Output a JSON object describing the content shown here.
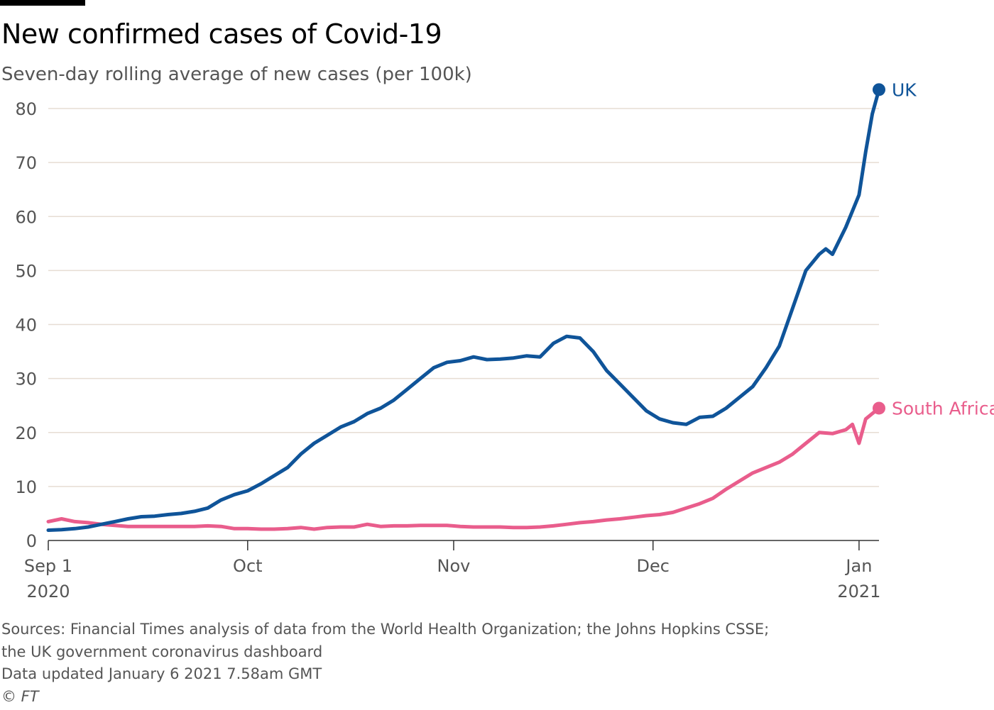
{
  "header": {
    "title": "New confirmed cases of Covid-19",
    "subtitle": "Seven-day rolling average of new cases (per 100k)"
  },
  "footer": {
    "sources_line1": "Sources: Financial Times analysis of data from the World Health Organization; the Johns Hopkins CSSE;",
    "sources_line2": "the UK government coronavirus dashboard",
    "updated": "Data updated January 6 2021 7.58am GMT",
    "copyright": "© FT"
  },
  "colors": {
    "uk": "#0f5499",
    "south_africa": "#e95d8c",
    "grid": "#e6ddd3",
    "axis": "#333333",
    "tick_text": "#555555"
  },
  "chart_data": {
    "type": "line",
    "title": "New confirmed cases of Covid-19",
    "subtitle": "Seven-day rolling average of new cases (per 100k)",
    "xlabel": "",
    "ylabel": "",
    "ylim": [
      0,
      80
    ],
    "yticks": [
      0,
      10,
      20,
      30,
      40,
      50,
      60,
      70,
      80
    ],
    "xlim": [
      "2020-09-01",
      "2021-01-04"
    ],
    "xticks": [
      {
        "date": "2020-09-01",
        "label": "Sep 1",
        "sublabel": "2020"
      },
      {
        "date": "2020-10-01",
        "label": "Oct",
        "sublabel": ""
      },
      {
        "date": "2020-11-01",
        "label": "Nov",
        "sublabel": ""
      },
      {
        "date": "2020-12-01",
        "label": "Dec",
        "sublabel": ""
      },
      {
        "date": "2021-01-01",
        "label": "Jan",
        "sublabel": "2021"
      }
    ],
    "grid": true,
    "legend": "end-of-line labels",
    "series": [
      {
        "name": "UK",
        "color": "#0f5499",
        "points": [
          [
            "2020-09-01",
            1.9
          ],
          [
            "2020-09-03",
            2.0
          ],
          [
            "2020-09-05",
            2.2
          ],
          [
            "2020-09-07",
            2.5
          ],
          [
            "2020-09-09",
            3.0
          ],
          [
            "2020-09-11",
            3.5
          ],
          [
            "2020-09-13",
            4.0
          ],
          [
            "2020-09-15",
            4.4
          ],
          [
            "2020-09-17",
            4.5
          ],
          [
            "2020-09-19",
            4.8
          ],
          [
            "2020-09-21",
            5.0
          ],
          [
            "2020-09-23",
            5.4
          ],
          [
            "2020-09-25",
            6.0
          ],
          [
            "2020-09-27",
            7.5
          ],
          [
            "2020-09-29",
            8.5
          ],
          [
            "2020-10-01",
            9.2
          ],
          [
            "2020-10-03",
            10.5
          ],
          [
            "2020-10-05",
            12.0
          ],
          [
            "2020-10-07",
            13.5
          ],
          [
            "2020-10-09",
            16.0
          ],
          [
            "2020-10-11",
            18.0
          ],
          [
            "2020-10-13",
            19.5
          ],
          [
            "2020-10-15",
            21.0
          ],
          [
            "2020-10-17",
            22.0
          ],
          [
            "2020-10-19",
            23.5
          ],
          [
            "2020-10-21",
            24.5
          ],
          [
            "2020-10-23",
            26.0
          ],
          [
            "2020-10-25",
            28.0
          ],
          [
            "2020-10-27",
            30.0
          ],
          [
            "2020-10-29",
            32.0
          ],
          [
            "2020-10-31",
            33.0
          ],
          [
            "2020-11-02",
            33.3
          ],
          [
            "2020-11-04",
            34.0
          ],
          [
            "2020-11-06",
            33.5
          ],
          [
            "2020-11-08",
            33.6
          ],
          [
            "2020-11-10",
            33.8
          ],
          [
            "2020-11-12",
            34.2
          ],
          [
            "2020-11-14",
            34.0
          ],
          [
            "2020-11-16",
            36.5
          ],
          [
            "2020-11-18",
            37.8
          ],
          [
            "2020-11-20",
            37.5
          ],
          [
            "2020-11-22",
            35.0
          ],
          [
            "2020-11-24",
            31.5
          ],
          [
            "2020-11-26",
            29.0
          ],
          [
            "2020-11-28",
            26.5
          ],
          [
            "2020-11-30",
            24.0
          ],
          [
            "2020-12-02",
            22.5
          ],
          [
            "2020-12-04",
            21.8
          ],
          [
            "2020-12-06",
            21.5
          ],
          [
            "2020-12-08",
            22.8
          ],
          [
            "2020-12-10",
            23.0
          ],
          [
            "2020-12-12",
            24.5
          ],
          [
            "2020-12-14",
            26.5
          ],
          [
            "2020-12-16",
            28.5
          ],
          [
            "2020-12-18",
            32.0
          ],
          [
            "2020-12-20",
            36.0
          ],
          [
            "2020-12-22",
            43.0
          ],
          [
            "2020-12-24",
            50.0
          ],
          [
            "2020-12-26",
            53.0
          ],
          [
            "2020-12-27",
            54.0
          ],
          [
            "2020-12-28",
            53.0
          ],
          [
            "2020-12-30",
            58.0
          ],
          [
            "2021-01-01",
            64.0
          ],
          [
            "2021-01-02",
            72.0
          ],
          [
            "2021-01-03",
            79.0
          ],
          [
            "2021-01-04",
            83.5
          ]
        ]
      },
      {
        "name": "South Africa",
        "color": "#e95d8c",
        "points": [
          [
            "2020-09-01",
            3.5
          ],
          [
            "2020-09-03",
            4.0
          ],
          [
            "2020-09-05",
            3.5
          ],
          [
            "2020-09-07",
            3.3
          ],
          [
            "2020-09-09",
            3.0
          ],
          [
            "2020-09-11",
            2.8
          ],
          [
            "2020-09-13",
            2.6
          ],
          [
            "2020-09-15",
            2.6
          ],
          [
            "2020-09-17",
            2.6
          ],
          [
            "2020-09-19",
            2.6
          ],
          [
            "2020-09-21",
            2.6
          ],
          [
            "2020-09-23",
            2.6
          ],
          [
            "2020-09-25",
            2.7
          ],
          [
            "2020-09-27",
            2.6
          ],
          [
            "2020-09-29",
            2.2
          ],
          [
            "2020-10-01",
            2.2
          ],
          [
            "2020-10-03",
            2.1
          ],
          [
            "2020-10-05",
            2.1
          ],
          [
            "2020-10-07",
            2.2
          ],
          [
            "2020-10-09",
            2.4
          ],
          [
            "2020-10-11",
            2.1
          ],
          [
            "2020-10-13",
            2.4
          ],
          [
            "2020-10-15",
            2.5
          ],
          [
            "2020-10-17",
            2.5
          ],
          [
            "2020-10-19",
            3.0
          ],
          [
            "2020-10-21",
            2.6
          ],
          [
            "2020-10-23",
            2.7
          ],
          [
            "2020-10-25",
            2.7
          ],
          [
            "2020-10-27",
            2.8
          ],
          [
            "2020-10-29",
            2.8
          ],
          [
            "2020-10-31",
            2.8
          ],
          [
            "2020-11-02",
            2.6
          ],
          [
            "2020-11-04",
            2.5
          ],
          [
            "2020-11-06",
            2.5
          ],
          [
            "2020-11-08",
            2.5
          ],
          [
            "2020-11-10",
            2.4
          ],
          [
            "2020-11-12",
            2.4
          ],
          [
            "2020-11-14",
            2.5
          ],
          [
            "2020-11-16",
            2.7
          ],
          [
            "2020-11-18",
            3.0
          ],
          [
            "2020-11-20",
            3.3
          ],
          [
            "2020-11-22",
            3.5
          ],
          [
            "2020-11-24",
            3.8
          ],
          [
            "2020-11-26",
            4.0
          ],
          [
            "2020-11-28",
            4.3
          ],
          [
            "2020-11-30",
            4.6
          ],
          [
            "2020-12-02",
            4.8
          ],
          [
            "2020-12-04",
            5.2
          ],
          [
            "2020-12-06",
            6.0
          ],
          [
            "2020-12-08",
            6.8
          ],
          [
            "2020-12-10",
            7.8
          ],
          [
            "2020-12-12",
            9.5
          ],
          [
            "2020-12-14",
            11.0
          ],
          [
            "2020-12-16",
            12.5
          ],
          [
            "2020-12-18",
            13.5
          ],
          [
            "2020-12-20",
            14.5
          ],
          [
            "2020-12-22",
            16.0
          ],
          [
            "2020-12-24",
            18.0
          ],
          [
            "2020-12-26",
            20.0
          ],
          [
            "2020-12-28",
            19.8
          ],
          [
            "2020-12-30",
            20.5
          ],
          [
            "2020-12-31",
            21.5
          ],
          [
            "2021-01-01",
            18.0
          ],
          [
            "2021-01-02",
            22.5
          ],
          [
            "2021-01-03",
            23.5
          ],
          [
            "2021-01-04",
            24.5
          ]
        ]
      }
    ]
  }
}
